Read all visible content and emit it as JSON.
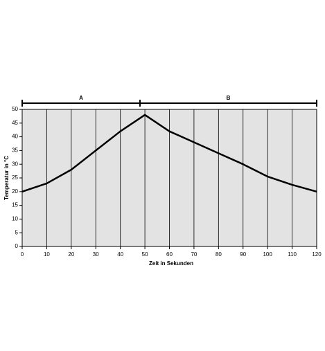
{
  "chart_data": {
    "type": "line",
    "x_label": "Zeit in Sekunden",
    "y_label": "Temperatur in °C",
    "x": [
      0,
      10,
      20,
      30,
      40,
      50,
      60,
      70,
      80,
      90,
      100,
      110,
      120
    ],
    "series": [
      {
        "color": "#000000",
        "values": [
          20,
          23,
          28,
          35,
          42,
          48,
          42,
          38,
          34,
          30,
          25.5,
          22.5,
          20
        ]
      }
    ],
    "xlim": [
      0,
      120
    ],
    "xticks": [
      0,
      10,
      20,
      30,
      40,
      50,
      60,
      70,
      80,
      90,
      100,
      110,
      120
    ],
    "ylim": [
      0,
      50
    ],
    "yticks": [
      0,
      5,
      10,
      15,
      20,
      25,
      30,
      35,
      40,
      45,
      50
    ],
    "grid": "x",
    "background": "#e3e3e3",
    "annotations": [
      {
        "label": "A",
        "x": [
          0,
          48
        ]
      },
      {
        "label": "B",
        "x": [
          48,
          120
        ]
      }
    ]
  }
}
